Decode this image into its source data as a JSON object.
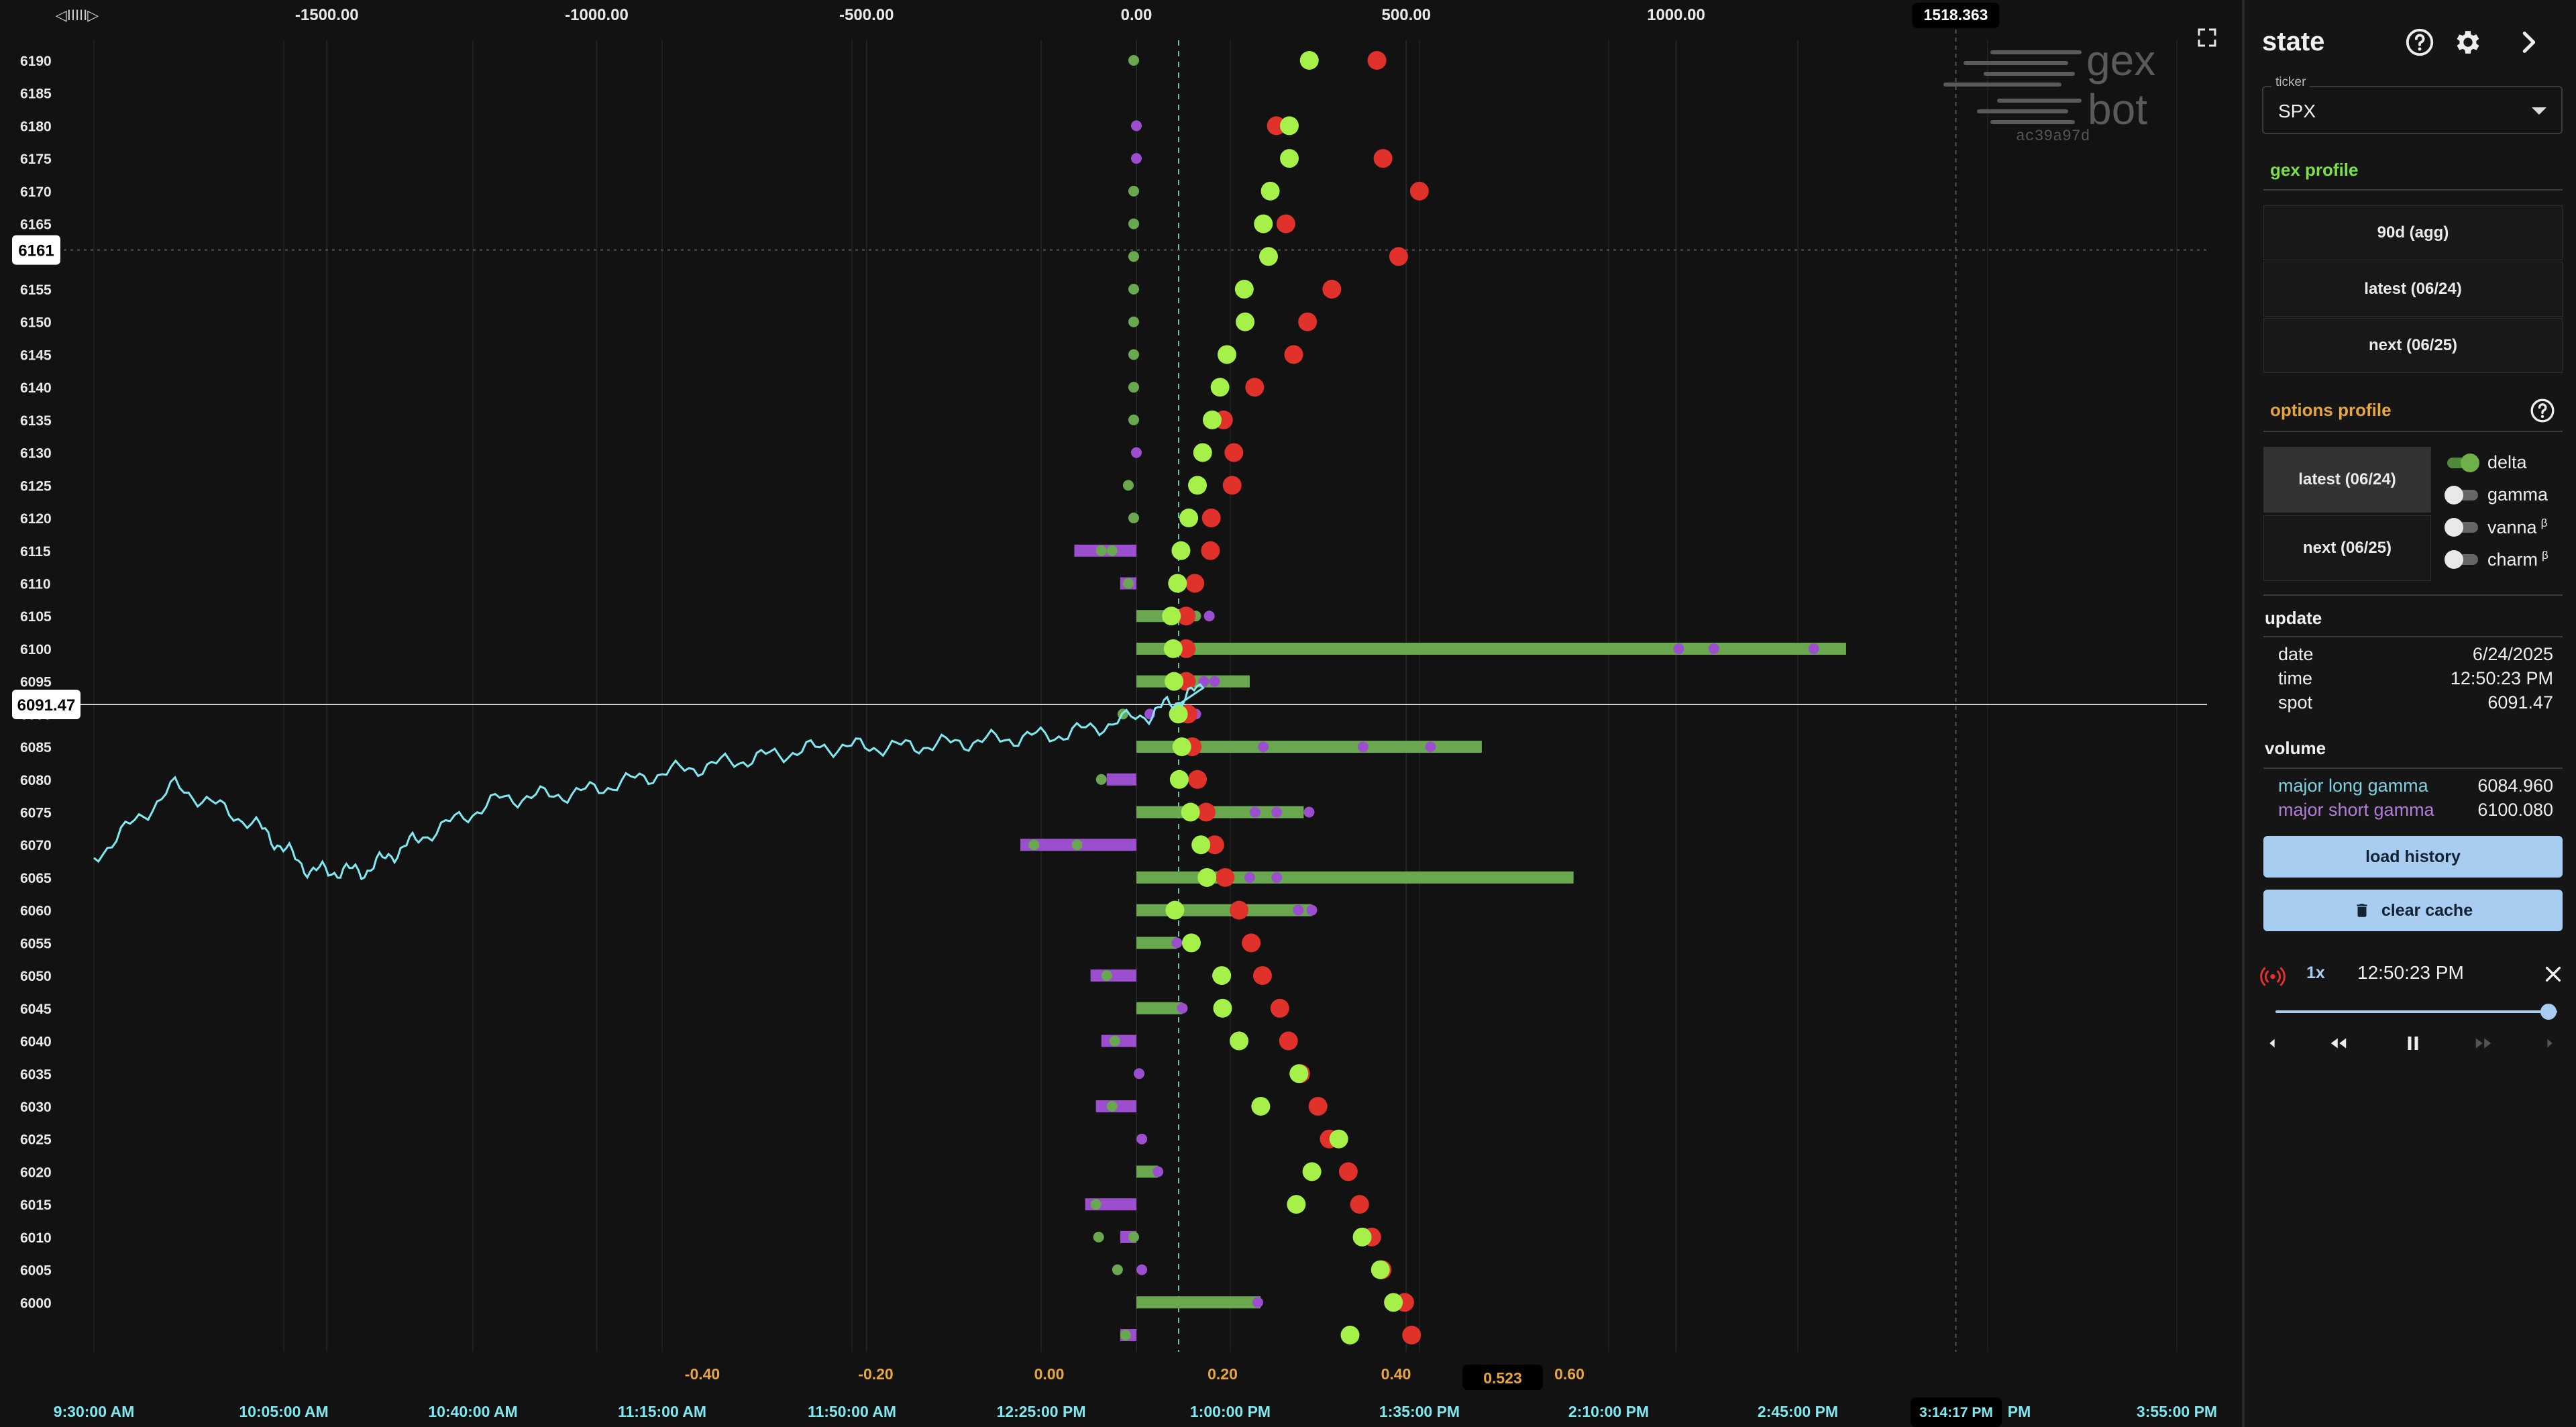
{
  "chart": {
    "top_axis_ticks": [
      "-1500.00",
      "-1000.00",
      "-500.00",
      "0.00",
      "500.00",
      "1000.00"
    ],
    "top_axis_values": [
      -1500,
      -1000,
      -500,
      0,
      500,
      1000
    ],
    "top_marker_value": "1518.363",
    "top_left_handle": "◁IIIII▷",
    "strike_ticks": [
      "6190",
      "6185",
      "6180",
      "6175",
      "6170",
      "6165",
      "6160",
      "6155",
      "6150",
      "6145",
      "6140",
      "6135",
      "6130",
      "6125",
      "6120",
      "6115",
      "6110",
      "6105",
      "6100",
      "6095",
      "6090",
      "6085",
      "6080",
      "6075",
      "6070",
      "6065",
      "6060",
      "6055",
      "6050",
      "6045",
      "6040",
      "6035",
      "6030",
      "6025",
      "6020",
      "6015",
      "6010",
      "6005",
      "6000"
    ],
    "price_marker_6161": "6161",
    "spot_marker": "6091.47",
    "spot_value": 6091.47,
    "hover_price": 6161,
    "bottom_delta_ticks": [
      "-0.40",
      "-0.20",
      "0.00",
      "0.20",
      "0.40",
      "0.60"
    ],
    "bottom_delta_values": [
      -0.4,
      -0.2,
      0.0,
      0.2,
      0.4,
      0.6
    ],
    "delta_marker_value": "0.523",
    "time_ticks": [
      "9:30:00 AM",
      "10:05:00 AM",
      "10:40:00 AM",
      "11:15:00 AM",
      "11:50:00 AM",
      "12:25:00 PM",
      "1:00:00 PM",
      "1:35:00 PM",
      "2:10:00 PM",
      "2:45:00 PM",
      "3:20:00 PM",
      "3:55:00 PM"
    ],
    "time_ticks_visible": [
      "9:30:00 AM",
      "10:05:00 AM",
      "10:40:00 AM",
      "11:15:00 AM",
      "11:50:00 AM",
      "12:25:00 PM",
      "1:00:00 PM",
      "1:35:00 PM",
      "2:10:00 PM",
      "2:45:00 PM",
      "PM",
      "3:55:00 PM"
    ],
    "time_marker_value": "3:14:17 PM",
    "colors": {
      "long_gamma": "#6aa84f",
      "short_gamma": "#9b4fcf",
      "call_delta": "#a6f04a",
      "put_delta": "#e0312a",
      "price_line": "#7fe8f0",
      "highlight": "#77c877"
    }
  },
  "chart_data": {
    "type": "scatter",
    "title": "",
    "xlabel": "",
    "ylabel": "",
    "strikes": [
      6190,
      6185,
      6180,
      6175,
      6170,
      6165,
      6160,
      6155,
      6150,
      6145,
      6140,
      6135,
      6130,
      6125,
      6120,
      6115,
      6110,
      6105,
      6100,
      6095,
      6090,
      6085,
      6080,
      6075,
      6070,
      6065,
      6060,
      6055,
      6050,
      6045,
      6040,
      6035,
      6030,
      6025,
      6020,
      6015,
      6010,
      6005,
      6000,
      5995
    ],
    "gex_bars": [
      {
        "strike": 6115,
        "value": -115,
        "color": "short"
      },
      {
        "strike": 6110,
        "value": -30,
        "color": "short"
      },
      {
        "strike": 6105,
        "value": 105,
        "color": "long"
      },
      {
        "strike": 6100,
        "value": 1315,
        "color": "long"
      },
      {
        "strike": 6095,
        "value": 210,
        "color": "long"
      },
      {
        "strike": 6085,
        "value": 640,
        "color": "long"
      },
      {
        "strike": 6080,
        "value": -55,
        "color": "short"
      },
      {
        "strike": 6075,
        "value": 310,
        "color": "long"
      },
      {
        "strike": 6070,
        "value": -215,
        "color": "short"
      },
      {
        "strike": 6065,
        "value": 810,
        "color": "long"
      },
      {
        "strike": 6060,
        "value": 325,
        "color": "long"
      },
      {
        "strike": 6055,
        "value": 75,
        "color": "long"
      },
      {
        "strike": 6050,
        "value": -85,
        "color": "short"
      },
      {
        "strike": 6045,
        "value": 85,
        "color": "long"
      },
      {
        "strike": 6040,
        "value": -65,
        "color": "short"
      },
      {
        "strike": 6030,
        "value": -75,
        "color": "short"
      },
      {
        "strike": 6020,
        "value": 40,
        "color": "long"
      },
      {
        "strike": 6015,
        "value": -95,
        "color": "short"
      },
      {
        "strike": 6010,
        "value": -30,
        "color": "short"
      },
      {
        "strike": 6000,
        "value": 230,
        "color": "long"
      },
      {
        "strike": 5995,
        "value": -30,
        "color": "short"
      }
    ],
    "call_delta_dots": [
      {
        "strike": 6190,
        "delta": 0.3
      },
      {
        "strike": 6180,
        "delta": 0.277
      },
      {
        "strike": 6175,
        "delta": 0.277
      },
      {
        "strike": 6170,
        "delta": 0.255
      },
      {
        "strike": 6165,
        "delta": 0.247
      },
      {
        "strike": 6160,
        "delta": 0.253
      },
      {
        "strike": 6155,
        "delta": 0.225
      },
      {
        "strike": 6150,
        "delta": 0.226
      },
      {
        "strike": 6145,
        "delta": 0.205
      },
      {
        "strike": 6140,
        "delta": 0.197
      },
      {
        "strike": 6135,
        "delta": 0.188
      },
      {
        "strike": 6130,
        "delta": 0.177
      },
      {
        "strike": 6125,
        "delta": 0.171
      },
      {
        "strike": 6120,
        "delta": 0.161
      },
      {
        "strike": 6115,
        "delta": 0.152
      },
      {
        "strike": 6110,
        "delta": 0.148
      },
      {
        "strike": 6105,
        "delta": 0.141
      },
      {
        "strike": 6100,
        "delta": 0.143
      },
      {
        "strike": 6095,
        "delta": 0.144
      },
      {
        "strike": 6090,
        "delta": 0.149
      },
      {
        "strike": 6085,
        "delta": 0.153
      },
      {
        "strike": 6080,
        "delta": 0.15
      },
      {
        "strike": 6075,
        "delta": 0.163
      },
      {
        "strike": 6070,
        "delta": 0.175
      },
      {
        "strike": 6065,
        "delta": 0.182
      },
      {
        "strike": 6060,
        "delta": 0.145
      },
      {
        "strike": 6055,
        "delta": 0.164
      },
      {
        "strike": 6050,
        "delta": 0.199
      },
      {
        "strike": 6045,
        "delta": 0.2
      },
      {
        "strike": 6040,
        "delta": 0.219
      },
      {
        "strike": 6035,
        "delta": 0.288
      },
      {
        "strike": 6030,
        "delta": 0.244
      },
      {
        "strike": 6025,
        "delta": 0.334
      },
      {
        "strike": 6020,
        "delta": 0.303
      },
      {
        "strike": 6015,
        "delta": 0.285
      },
      {
        "strike": 6010,
        "delta": 0.361
      },
      {
        "strike": 6005,
        "delta": 0.382
      },
      {
        "strike": 6000,
        "delta": 0.397
      },
      {
        "strike": 5995,
        "delta": 0.347
      }
    ],
    "put_delta_dots": [
      {
        "strike": 6190,
        "delta": 0.378
      },
      {
        "strike": 6180,
        "delta": 0.262
      },
      {
        "strike": 6175,
        "delta": 0.385
      },
      {
        "strike": 6170,
        "delta": 0.427
      },
      {
        "strike": 6165,
        "delta": 0.273
      },
      {
        "strike": 6160,
        "delta": 0.403
      },
      {
        "strike": 6155,
        "delta": 0.326
      },
      {
        "strike": 6150,
        "delta": 0.298
      },
      {
        "strike": 6145,
        "delta": 0.282
      },
      {
        "strike": 6140,
        "delta": 0.237
      },
      {
        "strike": 6135,
        "delta": 0.201
      },
      {
        "strike": 6130,
        "delta": 0.213
      },
      {
        "strike": 6125,
        "delta": 0.211
      },
      {
        "strike": 6120,
        "delta": 0.187
      },
      {
        "strike": 6115,
        "delta": 0.186
      },
      {
        "strike": 6110,
        "delta": 0.168
      },
      {
        "strike": 6105,
        "delta": 0.158
      },
      {
        "strike": 6100,
        "delta": 0.158
      },
      {
        "strike": 6095,
        "delta": 0.158
      },
      {
        "strike": 6090,
        "delta": 0.16
      },
      {
        "strike": 6085,
        "delta": 0.165
      },
      {
        "strike": 6080,
        "delta": 0.171
      },
      {
        "strike": 6075,
        "delta": 0.181
      },
      {
        "strike": 6070,
        "delta": 0.191
      },
      {
        "strike": 6065,
        "delta": 0.203
      },
      {
        "strike": 6060,
        "delta": 0.219
      },
      {
        "strike": 6055,
        "delta": 0.233
      },
      {
        "strike": 6050,
        "delta": 0.246
      },
      {
        "strike": 6045,
        "delta": 0.266
      },
      {
        "strike": 6040,
        "delta": 0.276
      },
      {
        "strike": 6035,
        "delta": 0.29
      },
      {
        "strike": 6030,
        "delta": 0.31
      },
      {
        "strike": 6025,
        "delta": 0.323
      },
      {
        "strike": 6020,
        "delta": 0.345
      },
      {
        "strike": 6015,
        "delta": 0.358
      },
      {
        "strike": 6010,
        "delta": 0.372
      },
      {
        "strike": 6005,
        "delta": 0.384
      },
      {
        "strike": 6000,
        "delta": 0.41
      },
      {
        "strike": 5995,
        "delta": 0.418
      }
    ],
    "price_series": {
      "times": [
        "9:30",
        "9:45",
        "10:00",
        "10:10",
        "10:20",
        "10:30",
        "10:45",
        "11:00",
        "11:15",
        "11:30",
        "11:45",
        "12:00",
        "12:15",
        "12:30",
        "12:45",
        "12:55"
      ],
      "prices": [
        6068,
        6079,
        6073,
        6066,
        6066,
        6071,
        6077,
        6078,
        6081,
        6083,
        6085,
        6085,
        6086,
        6087,
        6090,
        6094
      ]
    },
    "ylim": [
      5995,
      6190
    ],
    "xlim_gex": [
      -1500,
      1518.363
    ],
    "xlim_delta": [
      -0.4,
      0.6
    ]
  },
  "logo": {
    "line1": "gex",
    "line2": "bot",
    "hash": "ac39a97d"
  },
  "panel": {
    "title": "state",
    "ticker_label": "ticker",
    "ticker_value": "SPX",
    "gex_profile_title": "gex profile",
    "gex_buttons": [
      "90d (agg)",
      "latest (06/24)",
      "next (06/25)"
    ],
    "options_profile_title": "options profile",
    "option_buttons": [
      "latest (06/24)",
      "next (06/25)"
    ],
    "toggles": [
      {
        "label": "delta",
        "sup": "",
        "on": true
      },
      {
        "label": "gamma",
        "sup": "",
        "on": false
      },
      {
        "label": "vanna",
        "sup": "β",
        "on": false
      },
      {
        "label": "charm",
        "sup": "β",
        "on": false
      }
    ],
    "update_title": "update",
    "update": {
      "date_label": "date",
      "date": "6/24/2025",
      "time_label": "time",
      "time": "12:50:23 PM",
      "spot_label": "spot",
      "spot": "6091.47"
    },
    "volume_title": "volume",
    "volume": {
      "long_label": "major long gamma",
      "long_value": "6084.960",
      "short_label": "major short gamma",
      "short_value": "6100.080"
    },
    "load_history": "load history",
    "clear_cache": "clear cache",
    "playback": {
      "speed": "1x",
      "time": "12:50:23 PM",
      "position": 0.97
    },
    "colors": {
      "accent_gold": "#e8a640",
      "accent_green": "#7be04a",
      "button_blue": "#a8cdf0",
      "long_label": "#7fd0e0",
      "short_label": "#b07cd8"
    }
  }
}
